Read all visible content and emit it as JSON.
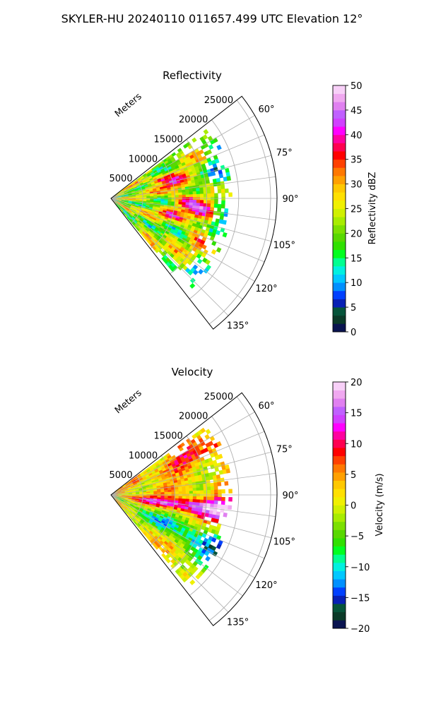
{
  "suptitle": "SKYLER-HU  20240110  011657.499 UTC Elevation 12°",
  "chart_data": [
    {
      "type": "heatmap",
      "subtype": "polar-sector",
      "title": "Reflectivity",
      "range_axis_label": "Meters",
      "range_ticks": [
        5000,
        10000,
        15000,
        20000,
        25000
      ],
      "range_tick_labels": [
        "5000",
        "10000",
        "15000",
        "20000",
        "25000"
      ],
      "rmax": 26000,
      "azimuth_range_deg": [
        52,
        142
      ],
      "azimuth_ticks": [
        60,
        75,
        90,
        105,
        120,
        135
      ],
      "azimuth_tick_labels": [
        "60°",
        "75°",
        "90°",
        "105°",
        "120°",
        "135°"
      ],
      "data_extent_m": 19000,
      "grid": true,
      "colorbar": {
        "label": "Reflectivity dBZ",
        "min": 0,
        "max": 50,
        "ticks": [
          0,
          5,
          10,
          15,
          20,
          25,
          30,
          35,
          40,
          45,
          50
        ],
        "tick_labels": [
          "0",
          "5",
          "10",
          "15",
          "20",
          "25",
          "30",
          "35",
          "40",
          "45",
          "50"
        ],
        "colors": [
          "#0a1450",
          "#0b3a28",
          "#06543a",
          "#0820b4",
          "#0040ff",
          "#0090ff",
          "#00c8ff",
          "#00f0e0",
          "#00ff90",
          "#00ff20",
          "#30e000",
          "#58d800",
          "#7ce000",
          "#a8ec00",
          "#d0f000",
          "#f0f000",
          "#ffe000",
          "#ffc800",
          "#ffa000",
          "#ff7800",
          "#ff4000",
          "#ff0000",
          "#ff0050",
          "#ff00a0",
          "#ff00ff",
          "#d040ff",
          "#c060ff",
          "#e080f0",
          "#f0a8f0",
          "#f8d0f8"
        ]
      }
    },
    {
      "type": "heatmap",
      "subtype": "polar-sector",
      "title": "Velocity",
      "range_axis_label": "Meters",
      "range_ticks": [
        5000,
        10000,
        15000,
        20000,
        25000
      ],
      "range_tick_labels": [
        "5000",
        "10000",
        "15000",
        "20000",
        "25000"
      ],
      "rmax": 26000,
      "azimuth_range_deg": [
        52,
        142
      ],
      "azimuth_ticks": [
        60,
        75,
        90,
        105,
        120,
        135
      ],
      "azimuth_tick_labels": [
        "60°",
        "75°",
        "90°",
        "105°",
        "120°",
        "135°"
      ],
      "data_extent_m": 19000,
      "grid": true,
      "colorbar": {
        "label": "Velocity (m/s)",
        "min": -20,
        "max": 20,
        "ticks": [
          -20,
          -15,
          -10,
          -5,
          0,
          5,
          10,
          15,
          20
        ],
        "tick_labels": [
          "−20",
          "−15",
          "−10",
          "−5",
          "0",
          "5",
          "10",
          "15",
          "20"
        ],
        "colors": [
          "#0a1450",
          "#0b3a28",
          "#06543a",
          "#0820b4",
          "#0040ff",
          "#0090ff",
          "#00c8ff",
          "#00f0e0",
          "#00ff90",
          "#00ff20",
          "#30e000",
          "#58d800",
          "#7ce000",
          "#a8ec00",
          "#d0f000",
          "#f0f000",
          "#ffe000",
          "#ffc800",
          "#ffa000",
          "#ff7800",
          "#ff4000",
          "#ff0000",
          "#ff0050",
          "#ff00a0",
          "#ff00ff",
          "#d040ff",
          "#c060ff",
          "#e080f0",
          "#f0a8f0",
          "#f8d0f8"
        ]
      }
    }
  ]
}
